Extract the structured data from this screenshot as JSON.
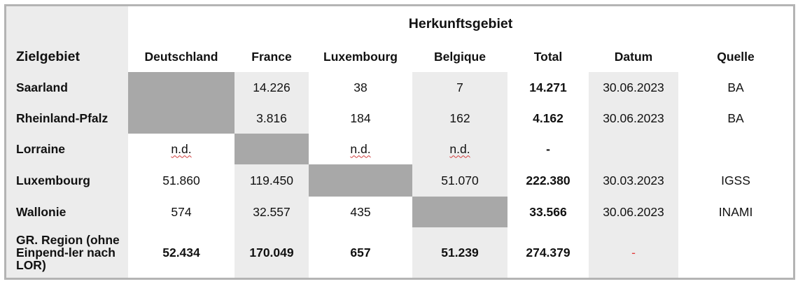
{
  "table": {
    "group_header": "Herkunftsgebiet",
    "row_header": "Zielgebiet",
    "columns": [
      "Deutschland",
      "France",
      "Luxembourg",
      "Belgique",
      "Total",
      "Datum",
      "Quelle"
    ],
    "rows": [
      {
        "label": "Saarland",
        "cells": [
          "",
          "14.226",
          "38",
          "7",
          "14.271",
          "30.06.2023",
          "BA"
        ]
      },
      {
        "label": "Rheinland-Pfalz",
        "cells": [
          "",
          "3.816",
          "184",
          "162",
          "4.162",
          "30.06.2023",
          "BA"
        ]
      },
      {
        "label": "Lorraine",
        "cells": [
          "n.d.",
          "",
          "n.d.",
          "n.d.",
          "-",
          "",
          ""
        ]
      },
      {
        "label": "Luxembourg",
        "cells": [
          "51.860",
          "119.450",
          "",
          "51.070",
          "222.380",
          "30.03.2023",
          "IGSS"
        ]
      },
      {
        "label": "Wallonie",
        "cells": [
          "574",
          "32.557",
          "435",
          "",
          "33.566",
          "30.06.2023",
          "INAMI"
        ]
      },
      {
        "label": "GR. Region (ohne Einpend-ler nach LOR)",
        "cells": [
          "52.434",
          "170.049",
          "657",
          "51.239",
          "274.379",
          "-",
          ""
        ]
      }
    ]
  },
  "colors": {
    "light_shade": "#ececec",
    "dark_shade": "#a8a8a8",
    "border": "#b4b4b4",
    "dash_red": "#e23b3b"
  }
}
